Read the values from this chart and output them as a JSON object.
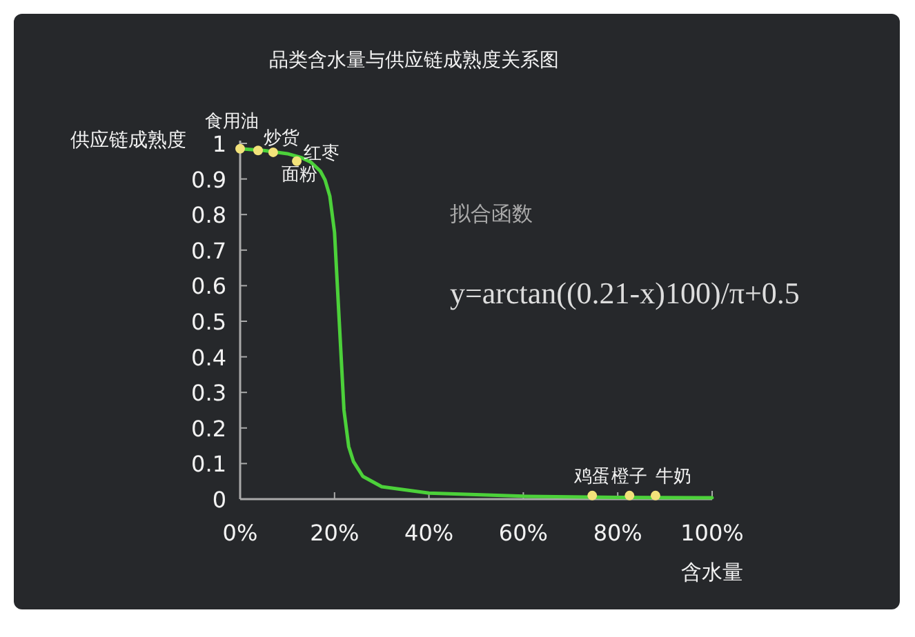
{
  "chart_data": {
    "type": "line",
    "title": "品类含水量与供应链成熟度关系图",
    "xlabel": "含水量",
    "ylabel": "供应链成熟度",
    "xlim": [
      0,
      1
    ],
    "ylim": [
      0,
      1
    ],
    "xticks": [
      {
        "value": 0,
        "label": "0%"
      },
      {
        "value": 0.2,
        "label": "20%"
      },
      {
        "value": 0.4,
        "label": "40%"
      },
      {
        "value": 0.6,
        "label": "60%"
      },
      {
        "value": 0.8,
        "label": "80%"
      },
      {
        "value": 1,
        "label": "100%"
      }
    ],
    "yticks": [
      0,
      0.1,
      0.2,
      0.3,
      0.4,
      0.5,
      0.6,
      0.7,
      0.8,
      0.9,
      1
    ],
    "grid": false,
    "series": [
      {
        "color": "#4cd13a",
        "line_style": "solid",
        "x": [
          0,
          0.05,
          0.1,
          0.13,
          0.15,
          0.17,
          0.18,
          0.19,
          0.2,
          0.21,
          0.22,
          0.23,
          0.24,
          0.26,
          0.3,
          0.4,
          0.6,
          0.8,
          1.0
        ],
        "values": [
          0.985,
          0.98,
          0.971,
          0.96,
          0.947,
          0.922,
          0.897,
          0.852,
          0.75,
          0.5,
          0.25,
          0.148,
          0.106,
          0.064,
          0.035,
          0.017,
          0.008,
          0.005,
          0.004
        ]
      },
      {
        "type": "scatter",
        "color": "#f2e27a",
        "marker": "circle",
        "x": [
          0,
          0.038,
          0.07,
          0.12,
          0.746,
          0.825,
          0.88
        ],
        "values": [
          0.985,
          0.98,
          0.975,
          0.95,
          0.01,
          0.01,
          0.01
        ]
      }
    ],
    "annotations": [
      "拟合函数",
      "y=arctan((0.21-x)100)/π+0.5",
      {
        "text": "食用油",
        "x": 0,
        "y": 0.985
      },
      {
        "text": "炒货",
        "x": 0.038,
        "y": 0.98
      },
      {
        "text": "面粉",
        "x": 0.07,
        "y": 0.975
      },
      {
        "text": "红枣",
        "x": 0.12,
        "y": 0.95
      },
      {
        "text": "鸡蛋",
        "x": 0.746,
        "y": 0.01
      },
      {
        "text": "橙子",
        "x": 0.825,
        "y": 0.01
      },
      {
        "text": "牛奶",
        "x": 0.88,
        "y": 0.01
      }
    ]
  }
}
